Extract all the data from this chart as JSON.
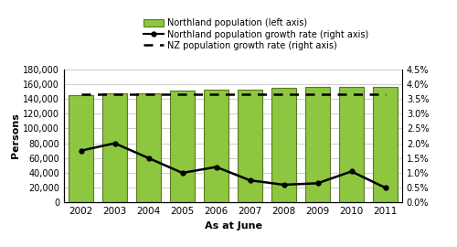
{
  "years": [
    2002,
    2003,
    2004,
    2005,
    2006,
    2007,
    2008,
    2009,
    2010,
    2011
  ],
  "population": [
    145500,
    147200,
    147500,
    150500,
    152000,
    152800,
    154200,
    155500,
    156200,
    156500
  ],
  "growth_rate": [
    1.75,
    2.0,
    1.5,
    1.0,
    1.2,
    0.75,
    0.6,
    0.65,
    1.05,
    0.5
  ],
  "nz_growth_rate": [
    3.65,
    3.65,
    3.65,
    3.65,
    3.65,
    3.65,
    3.65,
    3.65,
    3.65,
    3.65
  ],
  "bar_color": "#8DC63F",
  "bar_edge_color": "#5a7a20",
  "line_color": "#000000",
  "nz_line_color": "#000000",
  "ylabel_left": "Persons",
  "xlabel": "As at June",
  "ylim_left": [
    0,
    180000
  ],
  "ylim_right": [
    0.0,
    4.5
  ],
  "yticks_left": [
    0,
    20000,
    40000,
    60000,
    80000,
    100000,
    120000,
    140000,
    160000,
    180000
  ],
  "yticks_right": [
    0.0,
    0.5,
    1.0,
    1.5,
    2.0,
    2.5,
    3.0,
    3.5,
    4.0,
    4.5
  ],
  "ytick_labels_right": [
    "0.0%",
    "0.5%",
    "1.0%",
    "1.5%",
    "2.0%",
    "2.5%",
    "3.0%",
    "3.5%",
    "4.0%",
    "4.5%"
  ],
  "legend_pop": "Northland population (left axis)",
  "legend_growth": "Northland population growth rate (right axis)",
  "legend_nz": "NZ population growth rate (right axis)",
  "background_color": "#ffffff",
  "grid_color": "#bbbbbb"
}
